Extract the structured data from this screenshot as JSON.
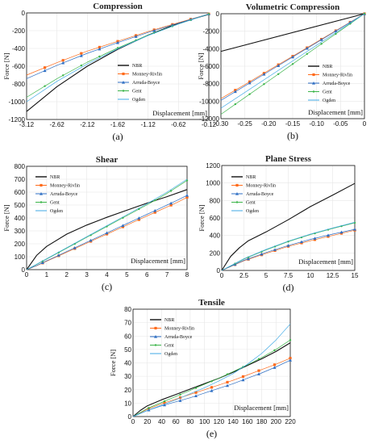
{
  "figure": {
    "background": "#ffffff"
  },
  "series_styles": {
    "NBR": {
      "color": "#111111",
      "marker": "none",
      "width": 1.1
    },
    "Monney-Rivlin": {
      "color": "#ff6a1a",
      "marker": "square",
      "width": 0.7
    },
    "Arruda-Boyce": {
      "color": "#2f6fc4",
      "marker": "triangle",
      "width": 0.7
    },
    "Gent": {
      "color": "#3cb54a",
      "marker": "dot",
      "width": 0.7
    },
    "Ogden": {
      "color": "#3fa9e6",
      "marker": "none",
      "width": 0.7
    }
  },
  "chart_data": [
    {
      "id": "a",
      "sublabel": "(a)",
      "type": "line",
      "title": "Compression",
      "xlabel": "Displacement [mm]",
      "ylabel": "Force [N]",
      "xlim": [
        -3.12,
        -0.12
      ],
      "ylim": [
        -1200,
        0
      ],
      "xticks": [
        -3.12,
        -2.62,
        -2.12,
        -1.62,
        -1.12,
        -0.62,
        -0.12
      ],
      "yticks": [
        -1200,
        -1000,
        -800,
        -600,
        -400,
        -200,
        0
      ],
      "grid": true,
      "legend": "bottom-right",
      "series": [
        {
          "name": "NBR",
          "x": [
            -3.12,
            -2.62,
            -2.12,
            -1.62,
            -1.12,
            -0.62,
            -0.12
          ],
          "y": [
            -1110,
            -830,
            -600,
            -410,
            -250,
            -115,
            -15
          ]
        },
        {
          "name": "Monney-Rivlin",
          "x": [
            -3.12,
            -2.62,
            -2.12,
            -1.62,
            -1.12,
            -0.62,
            -0.12
          ],
          "y": [
            -700,
            -560,
            -430,
            -320,
            -210,
            -110,
            -12
          ]
        },
        {
          "name": "Arruda-Boyce",
          "x": [
            -3.12,
            -2.62,
            -2.12,
            -1.62,
            -1.12,
            -0.62,
            -0.12
          ],
          "y": [
            -740,
            -590,
            -455,
            -335,
            -220,
            -115,
            -12
          ]
        },
        {
          "name": "Gent",
          "x": [
            -3.12,
            -2.62,
            -2.12,
            -1.62,
            -1.12,
            -0.62,
            -0.12
          ],
          "y": [
            -950,
            -740,
            -555,
            -395,
            -250,
            -125,
            -12
          ]
        },
        {
          "name": "Ogden",
          "x": [
            -3.12,
            -2.62,
            -2.12,
            -1.62,
            -1.12,
            -0.62,
            -0.12
          ],
          "y": [
            -1000,
            -770,
            -575,
            -405,
            -255,
            -125,
            -12
          ]
        }
      ]
    },
    {
      "id": "b",
      "sublabel": "(b)",
      "type": "line",
      "title": "Volumetric Compression",
      "xlabel": "Displacement [mm]",
      "ylabel": "Force [N]",
      "xlim": [
        -0.3,
        0
      ],
      "ylim": [
        -12000,
        0
      ],
      "xticks": [
        -0.3,
        -0.25,
        -0.2,
        -0.15,
        -0.1,
        -0.05,
        0
      ],
      "xticklabels": [
        "-0.30",
        "-0.25",
        "-0.20",
        "-0.15",
        "-0.10",
        "-0.05",
        "0"
      ],
      "yticks": [
        -12000,
        -10000,
        -8000,
        -6000,
        -4000,
        -2000,
        0
      ],
      "grid": true,
      "legend": "bottom-right",
      "series": [
        {
          "name": "NBR",
          "x": [
            -0.3,
            0
          ],
          "y": [
            -4300,
            0
          ]
        },
        {
          "name": "Monney-Rivlin",
          "x": [
            -0.3,
            -0.25,
            -0.2,
            -0.15,
            -0.1,
            -0.05,
            0
          ],
          "y": [
            -9700,
            -8100,
            -6480,
            -4860,
            -3240,
            -1620,
            0
          ]
        },
        {
          "name": "Arruda-Boyce",
          "x": [
            -0.3,
            -0.25,
            -0.2,
            -0.15,
            -0.1,
            -0.05,
            0
          ],
          "y": [
            -9900,
            -8250,
            -6600,
            -4950,
            -3300,
            -1650,
            0
          ]
        },
        {
          "name": "Gent",
          "x": [
            -0.3,
            -0.25,
            -0.2,
            -0.15,
            -0.1,
            -0.05,
            0
          ],
          "y": [
            -11500,
            -9580,
            -7670,
            -5750,
            -3830,
            -1920,
            0
          ]
        },
        {
          "name": "Ogden",
          "x": [
            -0.3,
            0
          ],
          "y": [
            -10800,
            0
          ]
        }
      ]
    },
    {
      "id": "c",
      "sublabel": "(c)",
      "type": "line",
      "title": "Shear",
      "xlabel": "Displacement [mm]",
      "ylabel": "Force [N]",
      "xlim": [
        0,
        8
      ],
      "ylim": [
        0,
        800
      ],
      "xticks": [
        0,
        1,
        2,
        3,
        4,
        5,
        6,
        7,
        8
      ],
      "yticks": [
        0,
        100,
        200,
        300,
        400,
        500,
        600,
        700,
        800
      ],
      "grid": true,
      "legend": "top-left",
      "series": [
        {
          "name": "NBR",
          "x": [
            0,
            0.5,
            1,
            2,
            3,
            4,
            5,
            6,
            7,
            8
          ],
          "y": [
            0,
            110,
            180,
            275,
            345,
            405,
            460,
            515,
            565,
            620
          ]
        },
        {
          "name": "Monney-Rivlin",
          "x": [
            0,
            0.5,
            1,
            1.5,
            2,
            2.5,
            3,
            3.5,
            4,
            4.5,
            5,
            5.5,
            6,
            6.5,
            7,
            7.5,
            8
          ],
          "y": [
            0,
            30,
            65,
            100,
            135,
            170,
            205,
            240,
            275,
            310,
            345,
            380,
            415,
            450,
            485,
            520,
            560
          ]
        },
        {
          "name": "Arruda-Boyce",
          "x": [
            0,
            0.5,
            1,
            1.5,
            2,
            2.5,
            3,
            3.5,
            4,
            4.5,
            5,
            5.5,
            6,
            6.5,
            7,
            7.5,
            8
          ],
          "y": [
            0,
            32,
            68,
            104,
            140,
            176,
            212,
            248,
            284,
            320,
            356,
            392,
            428,
            464,
            500,
            536,
            575
          ]
        },
        {
          "name": "Gent",
          "x": [
            0,
            0.5,
            1,
            1.5,
            2,
            2.5,
            3,
            3.5,
            4,
            4.5,
            5,
            5.5,
            6,
            6.5,
            7,
            7.5,
            8
          ],
          "y": [
            0,
            40,
            82,
            124,
            166,
            208,
            250,
            292,
            334,
            376,
            418,
            460,
            502,
            545,
            590,
            640,
            690
          ]
        },
        {
          "name": "Ogden",
          "x": [
            0,
            1,
            2,
            3,
            4,
            5,
            6,
            7,
            8
          ],
          "y": [
            0,
            85,
            170,
            255,
            340,
            425,
            510,
            600,
            700
          ]
        }
      ]
    },
    {
      "id": "d",
      "sublabel": "(d)",
      "type": "line",
      "title": "Plane Stress",
      "xlabel": "Displacement [mm]",
      "ylabel": "Force [N]",
      "xlim": [
        0,
        15
      ],
      "ylim": [
        0,
        1200
      ],
      "xticks": [
        0,
        2.5,
        5,
        7.5,
        10,
        12.5,
        15
      ],
      "xticklabels": [
        "0",
        "2.5",
        "5",
        "7.5",
        "10",
        "12.5",
        "15"
      ],
      "yticks": [
        0,
        200,
        400,
        600,
        800,
        1000,
        1200
      ],
      "grid": true,
      "legend": "top-left",
      "series": [
        {
          "name": "NBR",
          "x": [
            0,
            1,
            2,
            3,
            4,
            5,
            7.5,
            10,
            12.5,
            15
          ],
          "y": [
            0,
            160,
            260,
            340,
            390,
            440,
            580,
            730,
            860,
            995
          ]
        },
        {
          "name": "Monney-Rivlin",
          "x": [
            0,
            2.5,
            5,
            7.5,
            10,
            12.5,
            15
          ],
          "y": [
            0,
            110,
            195,
            275,
            340,
            400,
            460
          ]
        },
        {
          "name": "Arruda-Boyce",
          "x": [
            0,
            2.5,
            5,
            7.5,
            10,
            12.5,
            15
          ],
          "y": [
            0,
            115,
            205,
            285,
            355,
            415,
            470
          ]
        },
        {
          "name": "Gent",
          "x": [
            0,
            2.5,
            5,
            7.5,
            10,
            12.5,
            15
          ],
          "y": [
            0,
            130,
            235,
            330,
            410,
            480,
            545
          ]
        },
        {
          "name": "Ogden",
          "x": [
            0,
            2.5,
            5,
            7.5,
            10,
            12.5,
            15
          ],
          "y": [
            0,
            135,
            240,
            335,
            415,
            485,
            550
          ]
        }
      ]
    },
    {
      "id": "e",
      "sublabel": "(e)",
      "type": "line",
      "title": "Tensile",
      "xlabel": "Displacement [mm]",
      "ylabel": "Force [N]",
      "xlim": [
        0,
        220
      ],
      "ylim": [
        0,
        80
      ],
      "xticks": [
        0,
        20,
        40,
        60,
        80,
        100,
        120,
        140,
        160,
        180,
        200,
        220
      ],
      "yticks": [
        0,
        10,
        20,
        30,
        40,
        50,
        60,
        70,
        80
      ],
      "grid": true,
      "legend": "top-left",
      "series": [
        {
          "name": "NBR",
          "x": [
            0,
            10,
            20,
            40,
            60,
            80,
            100,
            120,
            140,
            160,
            180,
            200,
            220
          ],
          "y": [
            0,
            4.5,
            8,
            12.5,
            16.5,
            20.5,
            24.5,
            28.5,
            33,
            38,
            43,
            48.5,
            55
          ]
        },
        {
          "name": "Monney-Rivlin",
          "x": [
            0,
            20,
            40,
            60,
            80,
            100,
            120,
            140,
            160,
            180,
            200,
            220
          ],
          "y": [
            0,
            5.5,
            9.5,
            13,
            16.5,
            20,
            23.5,
            27,
            31,
            35,
            39,
            43.5
          ]
        },
        {
          "name": "Arruda-Boyce",
          "x": [
            0,
            20,
            40,
            60,
            80,
            100,
            120,
            140,
            160,
            180,
            200,
            220
          ],
          "y": [
            0,
            4.5,
            8,
            11,
            14,
            17.5,
            21,
            24.5,
            28.5,
            32.5,
            37,
            42
          ]
        },
        {
          "name": "Gent",
          "x": [
            0,
            20,
            40,
            60,
            80,
            100,
            120,
            140,
            160,
            180,
            200,
            220
          ],
          "y": [
            0,
            6,
            10.5,
            15,
            19.5,
            24,
            28.5,
            33.5,
            38.5,
            44,
            50,
            57
          ]
        },
        {
          "name": "Ogden",
          "x": [
            0,
            20,
            40,
            60,
            80,
            100,
            120,
            140,
            160,
            180,
            200,
            220
          ],
          "y": [
            0,
            4.5,
            8.5,
            12.5,
            17,
            21.5,
            26.5,
            32,
            39,
            47,
            57,
            69
          ]
        }
      ]
    }
  ]
}
